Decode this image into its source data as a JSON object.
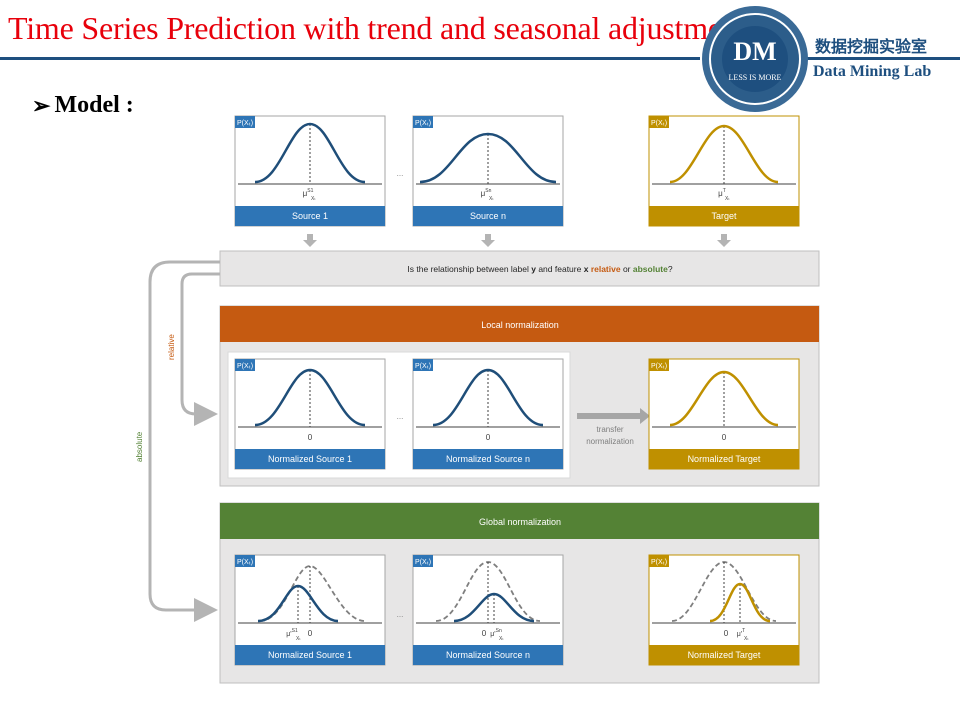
{
  "slide": {
    "title": "Time Series Prediction with trend and seasonal adjustment",
    "heading": "Model :",
    "bullet_glyph": "➢"
  },
  "logo": {
    "initials": "DM",
    "motto": "LESS IS MORE",
    "lab_name_cn": "数据挖掘实验室",
    "lab_name_en": "Data Mining Lab"
  },
  "diagram": {
    "density_tag": "P(Xₜ)",
    "ellipsis": "...",
    "top_row": {
      "panels": [
        {
          "caption": "Source 1",
          "mean_label": "μ",
          "mean_sup": "S1",
          "mean_sub": "Xₜ",
          "color": "#2e75b6",
          "curve": "#1f4e79"
        },
        {
          "caption": "Source n",
          "mean_label": "μ",
          "mean_sup": "Sn",
          "mean_sub": "Xₜ",
          "color": "#2e75b6",
          "curve": "#1f4e79"
        },
        {
          "caption": "Target",
          "mean_label": "μ",
          "mean_sup": "T",
          "mean_sub": "Xₜ",
          "color": "#bf9000",
          "curve": "#bf9000"
        }
      ]
    },
    "question": {
      "prefix": "Is the relationship between label ",
      "y": "y",
      "middle": " and feature ",
      "x": "x",
      "space": " ",
      "relative": "relative",
      "or": " or ",
      "absolute": "absolute",
      "suffix": "?"
    },
    "relative_label": "relative",
    "absolute_label": "absolute",
    "local": {
      "header": "Local normalization",
      "header_color": "#c55a11",
      "transfer_label_1": "transfer",
      "transfer_label_2": "normalization",
      "panels": [
        {
          "caption": "Normalized Source 1",
          "zero": "0"
        },
        {
          "caption": "Normalized Source n",
          "zero": "0"
        },
        {
          "caption": "Normalized Target",
          "zero": "0"
        }
      ]
    },
    "global": {
      "header": "Global normalization",
      "header_color": "#548235",
      "panels": [
        {
          "caption": "Normalized Source 1",
          "zero": "0",
          "mean_label": "μ'",
          "mean_sup": "S1",
          "mean_sub": "Xₜ"
        },
        {
          "caption": "Normalized Source n",
          "zero": "0",
          "mean_label": "μ'",
          "mean_sup": "Sn",
          "mean_sub": "Xₜ"
        },
        {
          "caption": "Normalized Target",
          "zero": "0",
          "mean_label": "μ'",
          "mean_sup": "T",
          "mean_sub": "Xₜ"
        }
      ]
    },
    "colors": {
      "source_blue": "#2e75b6",
      "curve_blue": "#1f4e79",
      "target_gold": "#bf9000",
      "relative_orange": "#c55a11",
      "absolute_green": "#548235"
    }
  }
}
